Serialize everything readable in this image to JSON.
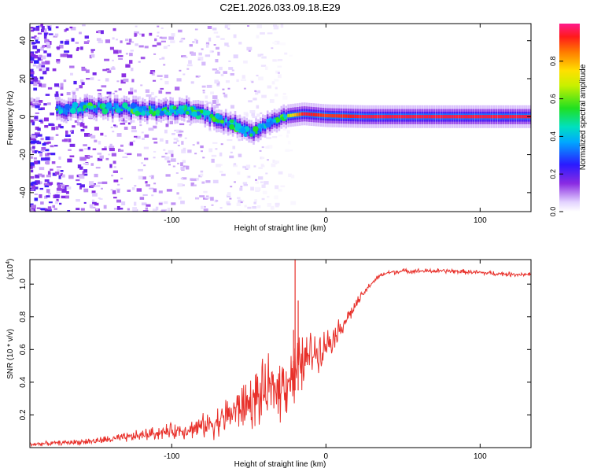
{
  "title": "C2E1.2026.033.09.18.E29",
  "colors": {
    "snr_line": "#e8302a",
    "frame": "#000000"
  },
  "chart_data": [
    {
      "type": "heatmap",
      "name": "spectrogram",
      "xlabel": "Height of straight line (km)",
      "ylabel": "Frequency (Hz)",
      "xlim": [
        -192,
        133
      ],
      "ylim": [
        -50,
        49
      ],
      "xticks": [
        -100,
        0,
        100
      ],
      "xtick_labels": [
        "-100",
        "0",
        "100"
      ],
      "yticks": [
        -40,
        -20,
        0,
        20,
        40
      ],
      "ytick_labels": [
        "-40",
        "-20",
        "0",
        "20",
        "40"
      ],
      "colorbar": {
        "label": "Normalized spectral amplitude",
        "range": [
          0.0,
          1.0
        ],
        "ticks": [
          0.0,
          0.2,
          0.4,
          0.6,
          0.8
        ],
        "tick_labels": [
          "0.0",
          "0.2",
          "0.4",
          "0.6",
          "0.8"
        ]
      },
      "ridge": {
        "description_free_points": [
          {
            "km": -170,
            "hz": 4.0,
            "amp": 0.45
          },
          {
            "km": -150,
            "hz": 5.0,
            "amp": 0.45
          },
          {
            "km": -130,
            "hz": 4.0,
            "amp": 0.5
          },
          {
            "km": -110,
            "hz": 3.0,
            "amp": 0.5
          },
          {
            "km": -90,
            "hz": 4.0,
            "amp": 0.5
          },
          {
            "km": -75,
            "hz": 0.0,
            "amp": 0.45
          },
          {
            "km": -60,
            "hz": -4.0,
            "amp": 0.45
          },
          {
            "km": -50,
            "hz": -9.0,
            "amp": 0.45
          },
          {
            "km": -40,
            "hz": -4.0,
            "amp": 0.45
          },
          {
            "km": -30,
            "hz": 0.0,
            "amp": 0.5
          },
          {
            "km": -15,
            "hz": 1.5,
            "amp": 0.95
          },
          {
            "km": 0,
            "hz": 0.5,
            "amp": 0.9
          },
          {
            "km": 25,
            "hz": 0.0,
            "amp": 0.95
          },
          {
            "km": 60,
            "hz": 0.0,
            "amp": 0.95
          },
          {
            "km": 100,
            "hz": 0.0,
            "amp": 0.95
          },
          {
            "km": 133,
            "hz": 0.0,
            "amp": 0.95
          }
        ]
      }
    },
    {
      "type": "line",
      "name": "snr",
      "xlabel": "Height of straight line (km)",
      "ylabel": "SNR (10 * v/v)",
      "yscale_label": "(x10",
      "yscale_exp": "4",
      "yscale_close": ")",
      "xlim": [
        -192,
        133
      ],
      "ylim": [
        0.0,
        1.15
      ],
      "xticks": [
        -100,
        0,
        100
      ],
      "xtick_labels": [
        "-100",
        "0",
        "100"
      ],
      "yticks": [
        0.2,
        0.4,
        0.6,
        0.8,
        1.0
      ],
      "ytick_labels": [
        "0.2",
        "0.4",
        "0.6",
        "0.8",
        "1.0"
      ],
      "series": [
        {
          "name": "SNR",
          "x": [
            -192,
            -170,
            -150,
            -130,
            -110,
            -90,
            -80,
            -70,
            -60,
            -50,
            -40,
            -30,
            -25,
            -20,
            -15,
            -10,
            -5,
            0,
            5,
            10,
            15,
            20,
            25,
            30,
            35,
            40,
            50,
            60,
            80,
            100,
            120,
            133
          ],
          "y": [
            0.02,
            0.03,
            0.04,
            0.06,
            0.09,
            0.11,
            0.13,
            0.16,
            0.22,
            0.27,
            0.33,
            0.38,
            0.42,
            0.46,
            0.52,
            0.57,
            0.6,
            0.63,
            0.68,
            0.74,
            0.81,
            0.88,
            0.95,
            1.01,
            1.05,
            1.07,
            1.08,
            1.08,
            1.08,
            1.07,
            1.06,
            1.06
          ],
          "noise": [
            0.01,
            0.012,
            0.018,
            0.025,
            0.035,
            0.045,
            0.06,
            0.08,
            0.11,
            0.14,
            0.16,
            0.17,
            0.18,
            0.18,
            0.15,
            0.12,
            0.1,
            0.08,
            0.07,
            0.05,
            0.04,
            0.03,
            0.02,
            0.015,
            0.012,
            0.012,
            0.012,
            0.012,
            0.012,
            0.012,
            0.012,
            0.012
          ]
        }
      ],
      "spikes": [
        {
          "x": -20,
          "y": 1.15
        },
        {
          "x": -21,
          "y": 0.72
        },
        {
          "x": -18,
          "y": 0.9
        }
      ]
    }
  ]
}
